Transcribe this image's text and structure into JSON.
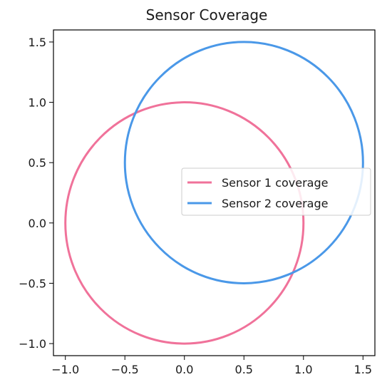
{
  "chart_data": {
    "type": "line",
    "title": "Sensor Coverage",
    "xlabel": "",
    "ylabel": "",
    "xlim": [
      -1.1,
      1.6
    ],
    "ylim": [
      -1.1,
      1.6
    ],
    "xticks": [
      -1.0,
      -0.5,
      0.0,
      0.5,
      1.0,
      1.5
    ],
    "yticks": [
      -1.0,
      -0.5,
      0.0,
      0.5,
      1.0,
      1.5
    ],
    "xtick_labels": [
      "−1.0",
      "−0.5",
      "0.0",
      "0.5",
      "1.0",
      "1.5"
    ],
    "ytick_labels": [
      "−1.0",
      "−0.5",
      "0.0",
      "0.5",
      "1.0",
      "1.5"
    ],
    "grid": false,
    "legend_position": "center-right",
    "series": [
      {
        "name": "Sensor 1 coverage",
        "shape": "circle",
        "center": [
          0.0,
          0.0
        ],
        "radius": 1.0,
        "color": "#f0729a"
      },
      {
        "name": "Sensor 2 coverage",
        "shape": "circle",
        "center": [
          0.5,
          0.5
        ],
        "radius": 1.0,
        "color": "#4a98e8"
      }
    ]
  }
}
